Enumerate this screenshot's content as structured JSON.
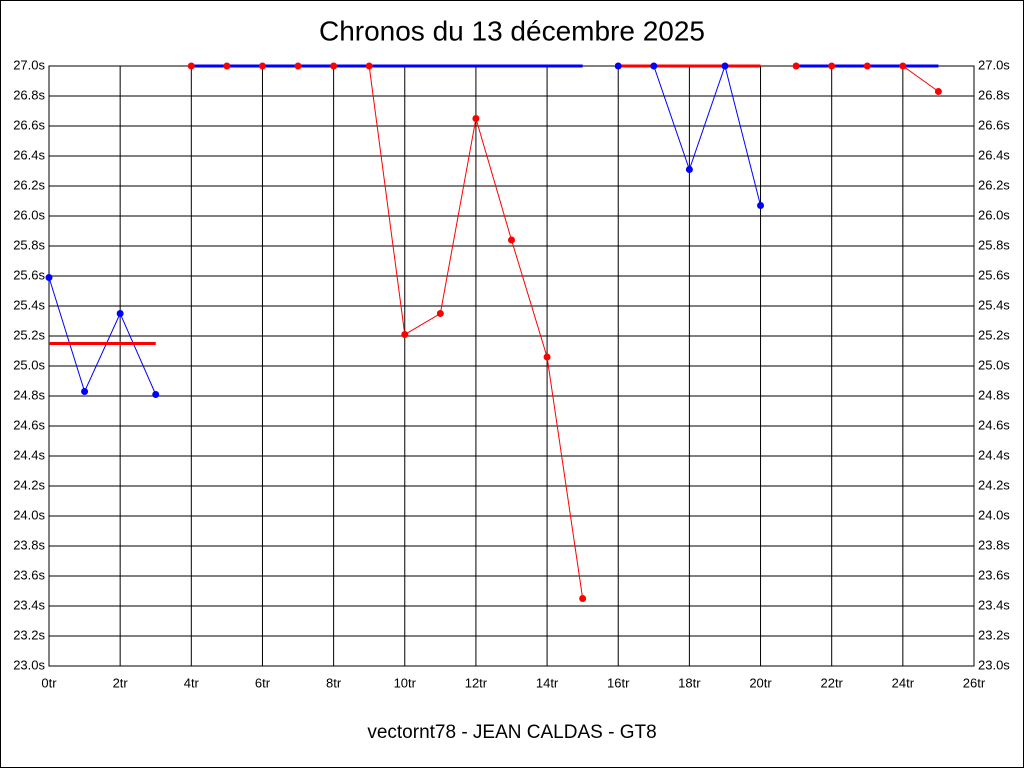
{
  "chart_data": {
    "type": "line",
    "title": "Chronos du 13 décembre 2025",
    "x_label": "vectornt78 - JEAN CALDAS - GT8",
    "xlim": [
      0,
      26
    ],
    "ylim": [
      23.0,
      27.0
    ],
    "grid": true,
    "xticks": [
      {
        "value": 0,
        "label": "0tr"
      },
      {
        "value": 2,
        "label": "2tr"
      },
      {
        "value": 4,
        "label": "4tr"
      },
      {
        "value": 6,
        "label": "6tr"
      },
      {
        "value": 8,
        "label": "8tr"
      },
      {
        "value": 10,
        "label": "10tr"
      },
      {
        "value": 12,
        "label": "12tr"
      },
      {
        "value": 14,
        "label": "14tr"
      },
      {
        "value": 16,
        "label": "16tr"
      },
      {
        "value": 18,
        "label": "18tr"
      },
      {
        "value": 20,
        "label": "20tr"
      },
      {
        "value": 22,
        "label": "22tr"
      },
      {
        "value": 24,
        "label": "24tr"
      },
      {
        "value": 26,
        "label": "26tr"
      }
    ],
    "yticks": [
      {
        "value": 23.0,
        "label": "23.0s"
      },
      {
        "value": 23.2,
        "label": "23.2s"
      },
      {
        "value": 23.4,
        "label": "23.4s"
      },
      {
        "value": 23.6,
        "label": "23.6s"
      },
      {
        "value": 23.8,
        "label": "23.8s"
      },
      {
        "value": 24.0,
        "label": "24.0s"
      },
      {
        "value": 24.2,
        "label": "24.2s"
      },
      {
        "value": 24.4,
        "label": "24.4s"
      },
      {
        "value": 24.6,
        "label": "24.6s"
      },
      {
        "value": 24.8,
        "label": "24.8s"
      },
      {
        "value": 25.0,
        "label": "25.0s"
      },
      {
        "value": 25.2,
        "label": "25.2s"
      },
      {
        "value": 25.4,
        "label": "25.4s"
      },
      {
        "value": 25.6,
        "label": "25.6s"
      },
      {
        "value": 25.8,
        "label": "25.8s"
      },
      {
        "value": 26.0,
        "label": "26.0s"
      },
      {
        "value": 26.2,
        "label": "26.2s"
      },
      {
        "value": 26.4,
        "label": "26.4s"
      },
      {
        "value": 26.6,
        "label": "26.6s"
      },
      {
        "value": 26.8,
        "label": "26.8s"
      },
      {
        "value": 27.0,
        "label": "27.0s"
      }
    ],
    "series": [
      {
        "color": "#0000ff",
        "markers": true,
        "width": 1,
        "x": [
          0,
          1,
          2,
          3
        ],
        "values": [
          25.59,
          24.83,
          25.35,
          24.81
        ]
      },
      {
        "color": "#ff0000",
        "markers": false,
        "width": 3,
        "x": [
          0,
          3
        ],
        "values": [
          25.15,
          25.15
        ]
      },
      {
        "color": "#ff0000",
        "markers": true,
        "width": 1,
        "x": [
          4,
          5,
          6,
          7,
          8,
          9,
          10,
          11,
          12,
          13,
          14,
          15
        ],
        "values": [
          27.0,
          27.0,
          27.0,
          27.0,
          27.0,
          27.0,
          25.21,
          25.35,
          26.65,
          25.84,
          25.06,
          23.45
        ]
      },
      {
        "color": "#0000ff",
        "markers": false,
        "width": 3,
        "x": [
          4,
          15
        ],
        "values": [
          27.0,
          27.0
        ]
      },
      {
        "color": "#0000ff",
        "markers": true,
        "width": 1,
        "x": [
          16,
          17,
          18,
          19,
          20
        ],
        "values": [
          27.0,
          27.0,
          26.31,
          27.0,
          26.07
        ]
      },
      {
        "color": "#ff0000",
        "markers": false,
        "width": 3,
        "x": [
          16,
          20
        ],
        "values": [
          27.0,
          27.0
        ]
      },
      {
        "color": "#ff0000",
        "markers": true,
        "width": 1,
        "x": [
          21,
          22,
          23,
          24,
          25
        ],
        "values": [
          27.0,
          27.0,
          27.0,
          27.0,
          26.83
        ]
      },
      {
        "color": "#0000ff",
        "markers": false,
        "width": 3,
        "x": [
          21,
          25
        ],
        "values": [
          27.0,
          27.0
        ]
      }
    ]
  }
}
